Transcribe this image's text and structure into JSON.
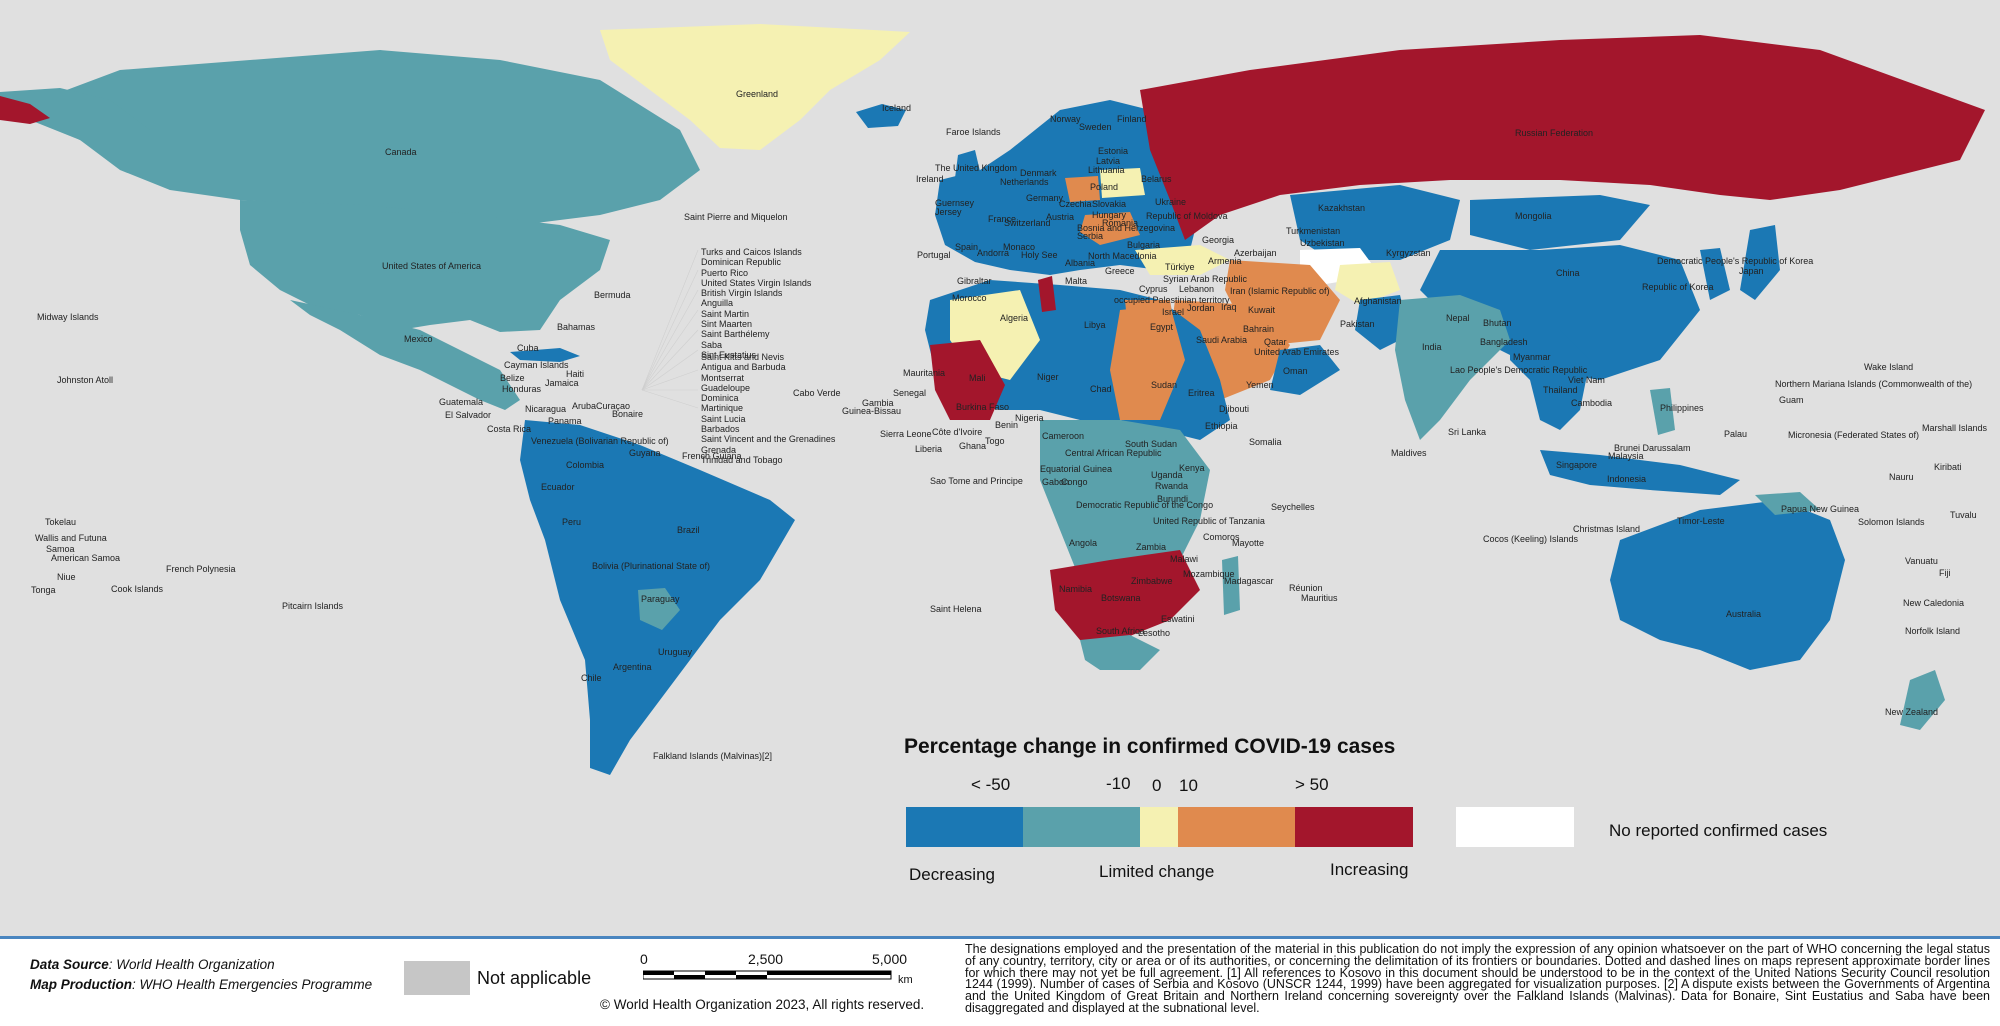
{
  "legend": {
    "title": "Percentage change in confirmed COVID-19 cases",
    "ticks": [
      "< -50",
      "-10",
      "0",
      "10",
      "> 50"
    ],
    "colors": [
      "#1b78b4",
      "#5aa1ab",
      "#f5f1b2",
      "#e08a4e",
      "#a3162c"
    ],
    "category_labels": {
      "decreasing": "Decreasing",
      "limited": "Limited change",
      "increasing": "Increasing"
    },
    "no_cases_color": "#ffffff",
    "no_cases_label": "No reported confirmed cases"
  },
  "map_labels": {
    "greenland": "Greenland",
    "iceland": "Iceland",
    "canada": "Canada",
    "usa": "United States of America",
    "mexico": "Mexico",
    "bermuda": "Bermuda",
    "bahamas": "Bahamas",
    "cuba": "Cuba",
    "cayman": "Cayman Islands",
    "belize": "Belize",
    "honduras": "Honduras",
    "jamaica": "Jamaica",
    "haiti": "Haiti",
    "guatemala": "Guatemala",
    "el_salvador": "El Salvador",
    "nicaragua": "Nicaragua",
    "aruba": "Aruba",
    "curacao": "Curaçao",
    "bonaire": "Bonaire",
    "panama": "Panama",
    "costa_rica": "Costa Rica",
    "venezuela": "Venezuela (Bolivarian Republic of)",
    "guyana": "Guyana",
    "french_guiana": "French Guiana",
    "colombia": "Colombia",
    "ecuador": "Ecuador",
    "peru": "Peru",
    "brazil": "Brazil",
    "bolivia": "Bolivia (Plurinational State of)",
    "paraguay": "Paraguay",
    "uruguay": "Uruguay",
    "chile": "Chile",
    "argentina": "Argentina",
    "falklands": "Falkland Islands (Malvinas)[2]",
    "midway": "Midway Islands",
    "johnston": "Johnston Atoll",
    "tokelau": "Tokelau",
    "wallis": "Wallis and Futuna",
    "samoa": "Samoa",
    "american_samoa": "American Samoa",
    "niue": "Niue",
    "tonga": "Tonga",
    "cook": "Cook Islands",
    "french_polynesia": "French Polynesia",
    "pitcairn": "Pitcairn Islands",
    "st_pierre": "Saint Pierre and Miquelon",
    "cabo_verde": "Cabo Verde",
    "gambia": "Gambia",
    "guinea_bissau": "Guinea-Bissau",
    "senegal": "Senegal",
    "mauritania": "Mauritania",
    "sierra_leone": "Sierra Leone",
    "liberia": "Liberia",
    "mali": "Mali",
    "niger": "Niger",
    "chad": "Chad",
    "sudan": "Sudan",
    "eritrea": "Eritrea",
    "djibouti": "Djibouti",
    "somalia": "Somalia",
    "burkina": "Burkina Faso",
    "nigeria": "Nigeria",
    "ghana": "Ghana",
    "cote": "Côte d'Ivoire",
    "togo": "Togo",
    "benin": "Benin",
    "cameroon": "Cameroon",
    "car": "Central African Republic",
    "south_sudan": "South Sudan",
    "eq_guinea": "Equatorial Guinea",
    "sao_tome": "Sao Tome and Principe",
    "gabon": "Gabon",
    "congo": "Congo",
    "drc": "Democratic Republic of the Congo",
    "uganda": "Uganda",
    "kenya": "Kenya",
    "rwanda": "Rwanda",
    "burundi": "Burundi",
    "tanzania": "United Republic of Tanzania",
    "angola": "Angola",
    "zambia": "Zambia",
    "malawi": "Malawi",
    "mozambique": "Mozambique",
    "zimbabwe": "Zimbabwe",
    "namibia": "Namibia",
    "botswana": "Botswana",
    "eswatini": "Eswatini",
    "lesotho": "Lesotho",
    "south_africa": "South Africa",
    "madagascar": "Madagascar",
    "comoros": "Comoros",
    "mayotte": "Mayotte",
    "reunion": "Réunion",
    "mauritius": "Mauritius",
    "seychelles": "Seychelles",
    "saint_helena": "Saint Helena",
    "libya": "Libya",
    "algeria": "Algeria",
    "morocco": "Morocco",
    "tunisia": "Tunisia",
    "egypt": "Egypt",
    "ethiopia": "Ethiopia",
    "faroe": "Faroe Islands",
    "uk": "The United Kingdom",
    "ireland": "Ireland",
    "guernsey": "Guernsey",
    "jersey": "Jersey",
    "france": "France",
    "portugal": "Portugal",
    "spain": "Spain",
    "andorra": "Andorra",
    "gibraltar": "Gibraltar",
    "monaco": "Monaco",
    "holy_see": "Holy See",
    "malta": "Malta",
    "greece": "Greece",
    "netherlands": "Netherlands",
    "denmark": "Denmark",
    "norway": "Norway",
    "sweden": "Sweden",
    "finland": "Finland",
    "estonia": "Estonia",
    "latvia": "Latvia",
    "lithuania": "Lithuania",
    "belarus": "Belarus",
    "poland": "Poland",
    "germany": "Germany",
    "switzerland": "Switzerland",
    "czechia": "Czechia",
    "slovakia": "Slovakia",
    "hungary": "Hungary",
    "austria": "Austria",
    "romania": "Romania",
    "ukraine": "Ukraine",
    "moldova": "Republic of Moldova",
    "bulgaria": "Bulgaria",
    "serbia": "Serbia",
    "bosnia": "Bosnia and Herzegovina",
    "north_macedonia": "North Macedonia",
    "albania": "Albania",
    "turkiye": "Türkiye",
    "cyprus": "Cyprus",
    "syria": "Syrian Arab Republic",
    "lebanon": "Lebanon",
    "israel": "Israel",
    "opt": "occupied Palestinian territory",
    "jordan": "Jordan",
    "iraq": "Iraq",
    "kuwait": "Kuwait",
    "bahrain": "Bahrain",
    "qatar": "Qatar",
    "uae": "United Arab Emirates",
    "oman": "Oman",
    "yemen": "Yemen",
    "saudi": "Saudi Arabia",
    "iran": "Iran (Islamic Republic of)",
    "georgia": "Georgia",
    "armenia": "Armenia",
    "azerbaijan": "Azerbaijan",
    "turkmenistan": "Turkmenistan",
    "uzbekistan": "Uzbekistan",
    "kazakhstan": "Kazakhstan",
    "kyrgyzstan": "Kyrgyzstan",
    "afghanistan": "Afghanistan",
    "pakistan": "Pakistan",
    "india": "India",
    "nepal": "Nepal",
    "bhutan": "Bhutan",
    "bangladesh": "Bangladesh",
    "myanmar": "Myanmar",
    "laos": "Lao People's Democratic Republic",
    "thailand": "Thailand",
    "viet_nam": "Viet Nam",
    "cambodia": "Cambodia",
    "sri_lanka": "Sri Lanka",
    "maldives": "Maldives",
    "malaysia": "Malaysia",
    "singapore": "Singapore",
    "brunei": "Brunei Darussalam",
    "indonesia": "Indonesia",
    "philippines": "Philippines",
    "timor": "Timor-Leste",
    "christmas": "Christmas Island",
    "cocos": "Cocos (Keeling) Islands",
    "russia": "Russian Federation",
    "mongolia": "Mongolia",
    "china": "China",
    "dprk": "Democratic People's Republic of Korea",
    "korea": "Republic of Korea",
    "japan": "Japan",
    "png": "Papua New Guinea",
    "solomon": "Solomon Islands",
    "australia": "Australia",
    "new_zealand": "New Zealand",
    "new_caledonia": "New Caledonia",
    "norfolk": "Norfolk Island",
    "vanuatu": "Vanuatu",
    "fiji": "Fiji",
    "tuvalu": "Tuvalu",
    "nauru": "Nauru",
    "kiribati": "Kiribati",
    "marshall": "Marshall Islands",
    "micronesia": "Micronesia (Federated States of)",
    "palau": "Palau",
    "guam": "Guam",
    "n_mariana": "Northern Mariana Islands (Commonwealth of the)",
    "wake": "Wake Island"
  },
  "caribbean_islands_a": [
    "Turks and Caicos Islands",
    "Dominican Republic",
    "Puerto Rico",
    "United States Virgin Islands",
    "British Virgin Islands",
    "Anguilla",
    "Saint Martin",
    "Sint Maarten",
    "Saint Barthélemy",
    "Saba",
    "Sint Eustatius"
  ],
  "caribbean_islands_b": [
    "Saint Kitts and Nevis",
    "Antigua and Barbuda",
    "Montserrat",
    "Guadeloupe",
    "Dominica",
    "Martinique",
    "Saint Lucia",
    "Barbados",
    "Saint Vincent and the Grenadines",
    "Grenada",
    "Trinidad and Tobago"
  ],
  "footer": {
    "data_source_label": "Data Source",
    "data_source_value": ": World Health Organization",
    "map_production_label": "Map Production",
    "map_production_value": ": WHO Health Emergencies Programme",
    "not_applicable_label": "Not applicable",
    "not_applicable_color": "#c6c6c6",
    "scale_values": [
      "0",
      "2,500",
      "5,000"
    ],
    "scale_unit": "km",
    "copyright": "© World Health Organization  2023,  All rights reserved.",
    "disclaimer": "The designations employed and the presentation of the material in this publication do not imply the expression of any opinion whatsoever on the part of WHO concerning the legal status of any country, territory, city or area or of its authorities, or concerning the delimitation of its frontiers or boundaries. Dotted and dashed lines on maps represent approximate border lines for which there may not yet be full agreement. [1] All references to Kosovo in this document should be understood to be in the context of the United Nations Security Council resolution 1244 (1999). Number of cases of Serbia and Kosovo (UNSCR 1244, 1999) have been aggregated for visualization purposes. [2] A dispute exists between the Governments of Argentina and the United Kingdom of Great Britain and Northern Ireland concerning sovereignty over the Falkland Islands (Malvinas). Data for Bonaire, Sint Eustatius and Saba have been disaggregated and displayed at the subnational level."
  }
}
